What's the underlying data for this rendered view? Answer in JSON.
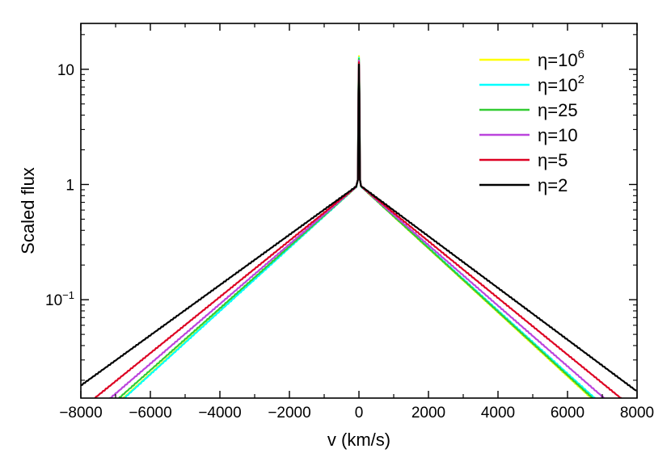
{
  "chart_data": {
    "type": "line",
    "xlabel": "v (km/s)",
    "ylabel": "Scaled flux",
    "xlim": [
      -8000,
      8000
    ],
    "ylim": [
      0.014,
      25
    ],
    "yscale": "log",
    "x_ticks": [
      -8000,
      -6000,
      -4000,
      -2000,
      0,
      2000,
      4000,
      6000,
      8000
    ],
    "x_tick_labels": [
      "−8000",
      "−6000",
      "−4000",
      "−2000",
      "0",
      "2000",
      "4000",
      "6000",
      "8000"
    ],
    "y_ticks": [
      {
        "value": 0.1,
        "base": "10",
        "exp": "−1"
      },
      {
        "value": 1,
        "base": "1",
        "exp": ""
      },
      {
        "value": 10,
        "base": "10",
        "exp": ""
      }
    ],
    "grid": false,
    "legend_position": "top-right",
    "series": [
      {
        "name": "η=10",
        "name_sup": "6",
        "color": "#ffff00",
        "peak": 13.0,
        "left_at_edge": [
          -6780,
          0.014
        ],
        "right_at_edge": [
          6680,
          0.014
        ]
      },
      {
        "name": "η=10",
        "name_sup": "2",
        "color": "#00ffff",
        "peak": 12.6,
        "left_at_edge": [
          -6750,
          0.014
        ],
        "right_at_edge": [
          6780,
          0.014
        ]
      },
      {
        "name": "η=25",
        "name_sup": "",
        "color": "#33cc33",
        "peak": 12.3,
        "left_at_edge": [
          -6900,
          0.014
        ],
        "right_at_edge": [
          6720,
          0.014
        ]
      },
      {
        "name": "η=10",
        "name_sup": "",
        "color": "#bb44dd",
        "peak": 11.9,
        "left_at_edge": [
          -7150,
          0.014
        ],
        "right_at_edge": [
          7050,
          0.014
        ]
      },
      {
        "name": "η=5",
        "name_sup": "",
        "color": "#dd0022",
        "peak": 11.5,
        "left_at_edge": [
          -7600,
          0.014
        ],
        "right_at_edge": [
          7530,
          0.014
        ]
      },
      {
        "name": "η=2",
        "name_sup": "",
        "color": "#000000",
        "peak": 11.0,
        "left_at_edge": [
          -8000,
          0.018
        ],
        "right_at_edge": [
          8000,
          0.016
        ]
      }
    ]
  }
}
